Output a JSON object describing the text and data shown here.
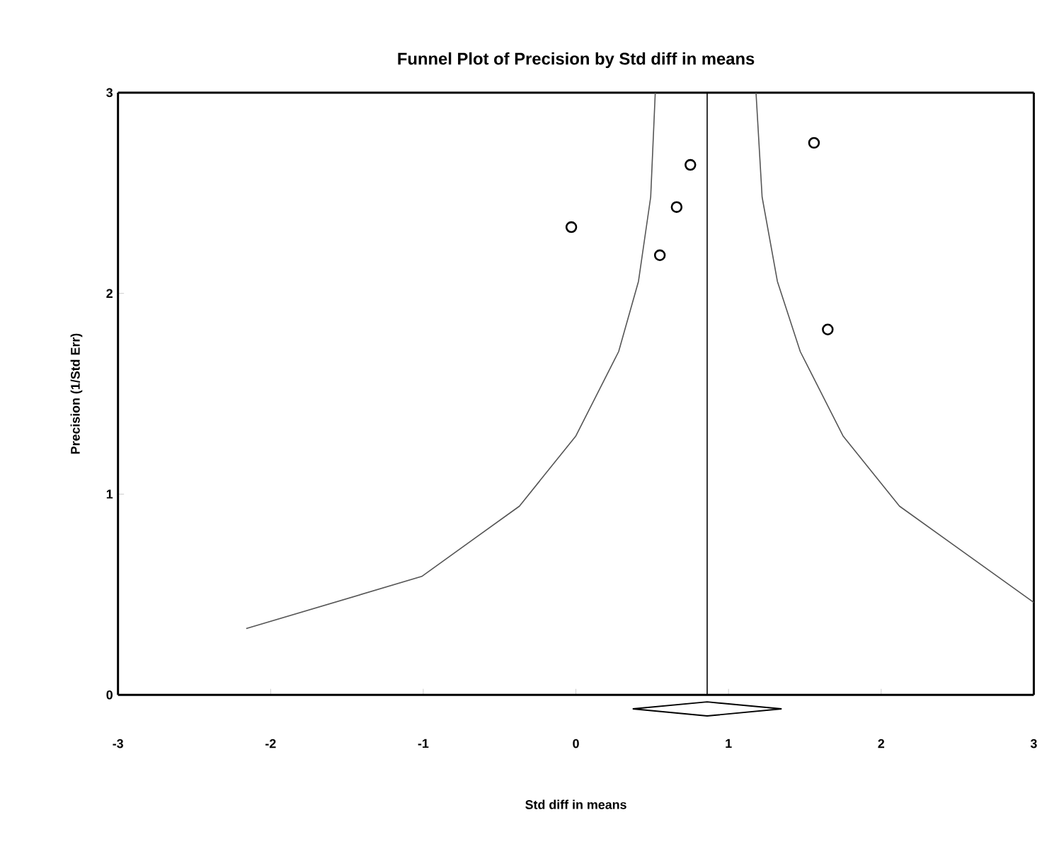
{
  "chart_data": {
    "type": "scatter",
    "title": "Funnel Plot of Precision by Std diff in means",
    "xlabel": "Std diff in means",
    "ylabel": "Precision (1/Std Err)",
    "xlim": [
      -3,
      3
    ],
    "ylim": [
      0,
      3
    ],
    "xticks": [
      -3,
      -2,
      -1,
      0,
      1,
      2,
      3
    ],
    "yticks": [
      0,
      1,
      2,
      3
    ],
    "grid": false,
    "marker": "circle",
    "series": [
      {
        "color": "#000000",
        "x": [
          -0.03,
          0.55,
          0.66,
          0.75,
          1.56,
          1.65
        ],
        "values": [
          2.33,
          2.19,
          2.43,
          2.64,
          2.75,
          1.82
        ]
      },
      {
        "type": "line",
        "color": "#555555",
        "marker": "none",
        "x": [
          -2.16,
          -1.01,
          -0.37,
          0.0,
          0.28,
          0.41,
          0.49,
          0.52
        ],
        "values": [
          0.33,
          0.59,
          0.94,
          1.29,
          1.71,
          2.06,
          2.48,
          3.0
        ]
      },
      {
        "type": "line",
        "color": "#555555",
        "marker": "none",
        "x": [
          1.18,
          1.22,
          1.32,
          1.47,
          1.75,
          2.12,
          3.0
        ],
        "values": [
          3.0,
          2.48,
          2.06,
          1.71,
          1.29,
          0.94,
          0.46
        ]
      }
    ],
    "ref_lines": [
      {
        "axis": "x",
        "value": 0.86,
        "label": null,
        "color": "#000000"
      }
    ]
  }
}
